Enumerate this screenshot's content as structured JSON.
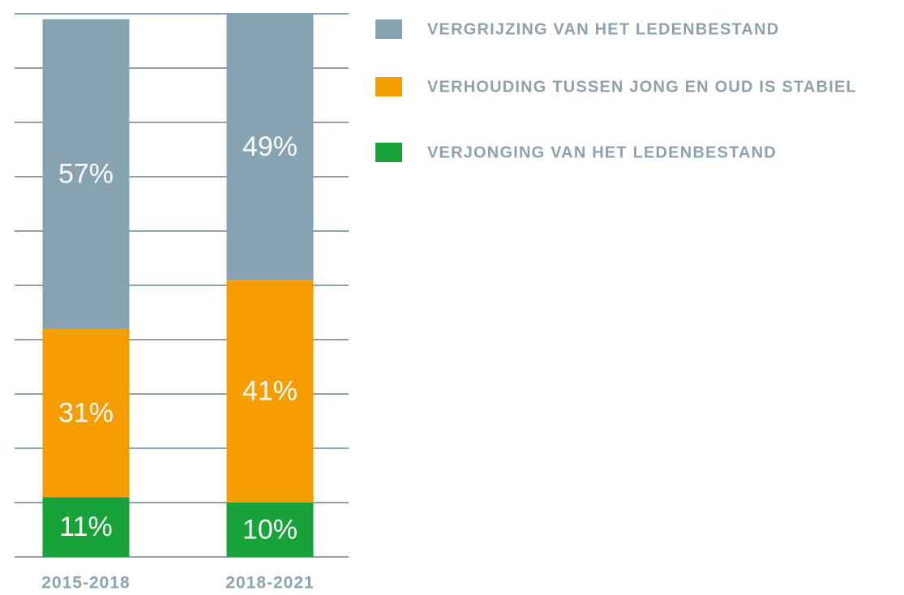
{
  "chart_data": {
    "type": "stacked_bar",
    "categories": [
      "2015-2018",
      "2018-2021"
    ],
    "series": [
      {
        "name": "VERGRIJZING VAN HET LEDENBESTAND",
        "color": "#87a3b1",
        "values": [
          57,
          49
        ],
        "value_labels": [
          "57%",
          "49%"
        ]
      },
      {
        "name": "VERHOUDING TUSSEN JONG EN OUD IS STABIEL",
        "color": "#f59d00",
        "values": [
          31,
          41
        ],
        "value_labels": [
          "31%",
          "41%"
        ]
      },
      {
        "name": "VERJONGING VAN HET LEDENBESTAND",
        "color": "#17a23a",
        "values": [
          11,
          10
        ],
        "value_labels": [
          "11%",
          "10%"
        ]
      }
    ],
    "ylim": [
      0,
      100
    ],
    "yticks": [
      0,
      10,
      20,
      30,
      40,
      50,
      60,
      70,
      80,
      90,
      100
    ],
    "grid": true,
    "legend": "right"
  }
}
